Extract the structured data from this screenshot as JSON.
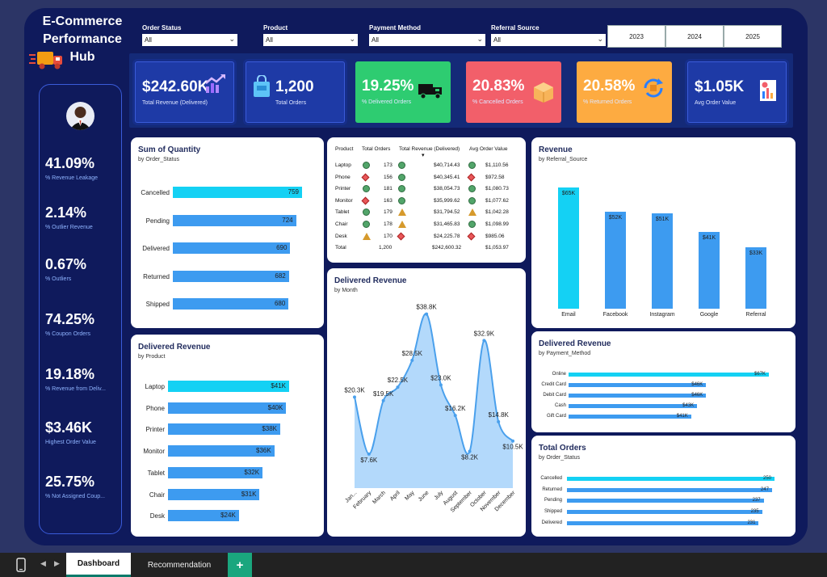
{
  "header": {
    "title": "E-Commerce Performance Hub"
  },
  "filters": [
    {
      "label": "Order Status",
      "value": "All"
    },
    {
      "label": "Product",
      "value": "All"
    },
    {
      "label": "Payment Method",
      "value": "All"
    },
    {
      "label": "Referral Source",
      "value": "All"
    }
  ],
  "years": [
    "2023",
    "2024",
    "2025"
  ],
  "kpis": [
    {
      "value": "$242.60K",
      "label": "Total Revenue (Delivered)",
      "icon": "chart-up-icon",
      "color": "#1e3aa6"
    },
    {
      "value": "1,200",
      "label": "Total Orders",
      "icon": "shopping-bag-icon",
      "color": "#1e3aa6"
    },
    {
      "value": "19.25%",
      "label": "% Delivered Orders",
      "icon": "truck-icon",
      "color": "#2ecc71"
    },
    {
      "value": "20.83%",
      "label": "% Cancelled Orders",
      "icon": "box-icon",
      "color": "#f25f6a"
    },
    {
      "value": "20.58%",
      "label": "% Returned Orders",
      "icon": "return-icon",
      "color": "#fdab41"
    },
    {
      "value": "$1.05K",
      "label": "Avg Order Value",
      "icon": "report-icon",
      "color": "#1e3aa6"
    }
  ],
  "side_metrics": [
    {
      "value": "41.09%",
      "label": "% Revenue Leakage"
    },
    {
      "value": "2.14%",
      "label": "% Outlier Revenue"
    },
    {
      "value": "0.67%",
      "label": "% Outliers"
    },
    {
      "value": "74.25%",
      "label": "% Coupon Orders"
    },
    {
      "value": "19.18%",
      "label": "% Revenue from Deliv..."
    },
    {
      "value": "$3.46K",
      "label": "Highest Order Value"
    },
    {
      "value": "25.75%",
      "label": "% Not Assigned Coup..."
    }
  ],
  "qty": {
    "title": "Sum of Quantity",
    "sub": "by Order_Status"
  },
  "prod_rev": {
    "title": "Delivered Revenue",
    "sub": "by Product"
  },
  "month_rev": {
    "title": "Delivered Revenue",
    "sub": "by Month"
  },
  "ref_rev": {
    "title": "Revenue",
    "sub": "by Referral_Source"
  },
  "pay_rev": {
    "title": "Delivered Revenue",
    "sub": "by Payment_Method"
  },
  "orders": {
    "title": "Total Orders",
    "sub": "by Order_Status"
  },
  "table": {
    "headers": [
      "Product",
      "Total Orders",
      "Total Revenue (Delivered)",
      "Avg Order Value"
    ],
    "rows": [
      {
        "p": "Laptop",
        "o": "173",
        "r": "$40,714.43",
        "a": "$1,110.56",
        "oi": "dot",
        "ri": "dot",
        "ai": "dot"
      },
      {
        "p": "Phone",
        "o": "156",
        "r": "$40,345.41",
        "a": "$972.58",
        "oi": "dia",
        "ri": "dot",
        "ai": "dia"
      },
      {
        "p": "Printer",
        "o": "181",
        "r": "$38,054.73",
        "a": "$1,080.73",
        "oi": "dot",
        "ri": "dot",
        "ai": "dot"
      },
      {
        "p": "Monitor",
        "o": "163",
        "r": "$35,999.62",
        "a": "$1,077.62",
        "oi": "dia",
        "ri": "dot",
        "ai": "dot"
      },
      {
        "p": "Tablet",
        "o": "179",
        "r": "$31,794.52",
        "a": "$1,042.28",
        "oi": "dot",
        "ri": "tri",
        "ai": "tri"
      },
      {
        "p": "Chair",
        "o": "178",
        "r": "$31,465.83",
        "a": "$1,098.99",
        "oi": "dot",
        "ri": "tri",
        "ai": "dot"
      },
      {
        "p": "Desk",
        "o": "170",
        "r": "$24,225.78",
        "a": "$985.06",
        "oi": "tri",
        "ri": "dia",
        "ai": "dia"
      }
    ],
    "total": {
      "p": "Total",
      "o": "1,200",
      "r": "$242,600.32",
      "a": "$1,053.97"
    }
  },
  "tabs": {
    "dashboard": "Dashboard",
    "recommendation": "Recommendation",
    "add": "+"
  },
  "chart_data": [
    {
      "type": "bar",
      "title": "Sum of Quantity",
      "subtitle": "by Order_Status",
      "categories": [
        "Cancelled",
        "Pending",
        "Delivered",
        "Returned",
        "Shipped"
      ],
      "values": [
        759,
        724,
        690,
        682,
        680
      ],
      "labels": [
        "759",
        "724",
        "690",
        "682",
        "680"
      ],
      "orientation": "horizontal"
    },
    {
      "type": "bar",
      "title": "Delivered Revenue",
      "subtitle": "by Product",
      "categories": [
        "Laptop",
        "Phone",
        "Printer",
        "Monitor",
        "Tablet",
        "Chair",
        "Desk"
      ],
      "values": [
        41,
        40,
        38,
        36,
        32,
        31,
        24
      ],
      "labels": [
        "$41K",
        "$40K",
        "$38K",
        "$36K",
        "$32K",
        "$31K",
        "$24K"
      ],
      "orientation": "horizontal"
    },
    {
      "type": "area",
      "title": "Delivered Revenue",
      "subtitle": "by Month",
      "categories": [
        "January",
        "February",
        "March",
        "April",
        "May",
        "June",
        "July",
        "August",
        "September",
        "October",
        "November",
        "December"
      ],
      "values": [
        20.3,
        7.6,
        19.5,
        22.5,
        28.5,
        38.8,
        23.0,
        16.2,
        8.2,
        32.9,
        14.8,
        10.5
      ],
      "labels": [
        "$20.3K",
        "$7.6K",
        "$19.5K",
        "$22.5K",
        "$28.5K",
        "$38.8K",
        "$23.0K",
        "$16.2K",
        "$8.2K",
        "$32.9K",
        "$14.8K",
        "$10.5K"
      ],
      "ticks": [
        "Jan...",
        "February",
        "March",
        "April",
        "May",
        "June",
        "July",
        "August",
        "September",
        "October",
        "November",
        "December"
      ]
    },
    {
      "type": "bar",
      "title": "Revenue",
      "subtitle": "by Referral_Source",
      "categories": [
        "Email",
        "Facebook",
        "Instagram",
        "Google",
        "Referral"
      ],
      "values": [
        65,
        52,
        51,
        41,
        33
      ],
      "labels": [
        "$65K",
        "$52K",
        "$51K",
        "$41K",
        "$33K"
      ],
      "orientation": "vertical"
    },
    {
      "type": "bar",
      "title": "Delivered Revenue",
      "subtitle": "by Payment_Method",
      "categories": [
        "Online",
        "Credit Card",
        "Debit Card",
        "Cash",
        "Gift Card"
      ],
      "values": [
        67,
        46,
        46,
        43,
        41
      ],
      "labels": [
        "$67K",
        "$46K",
        "$46K",
        "$43K",
        "$41K"
      ],
      "orientation": "horizontal"
    },
    {
      "type": "bar",
      "title": "Total Orders",
      "subtitle": "by Order_Status",
      "categories": [
        "Cancelled",
        "Returned",
        "Pending",
        "Shipped",
        "Delivered"
      ],
      "values": [
        250,
        247,
        237,
        235,
        231
      ],
      "labels": [
        "250",
        "247",
        "237",
        "235",
        "231"
      ],
      "orientation": "horizontal"
    }
  ]
}
